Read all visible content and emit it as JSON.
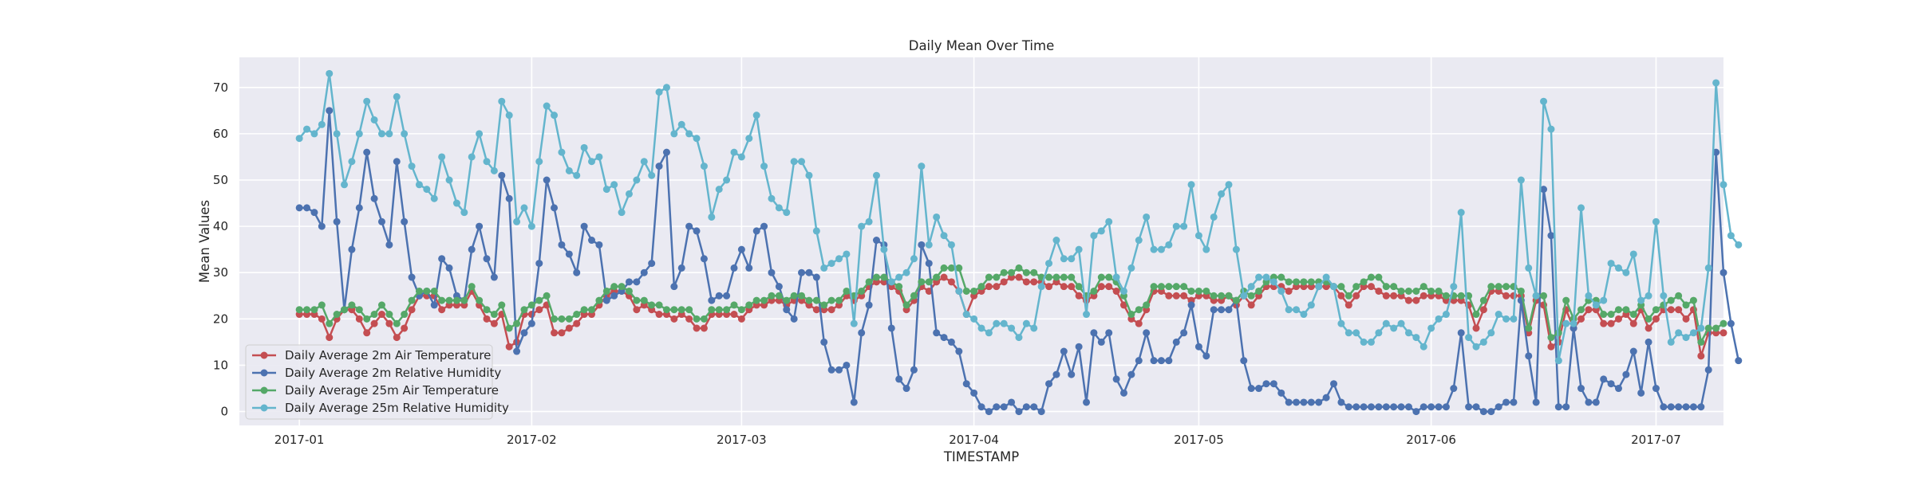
{
  "chart_data": {
    "type": "line",
    "title": "Daily Mean Over Time",
    "xlabel": "TIMESTAMP",
    "ylabel": "Mean Values",
    "xlim": [
      "2016-12-24",
      "2017-07-10"
    ],
    "ylim": [
      -3,
      76.5
    ],
    "yticks": [
      0,
      10,
      20,
      30,
      40,
      50,
      60,
      70
    ],
    "xticks": [
      "2017-01-01",
      "2017-02-01",
      "2017-03-01",
      "2017-04-01",
      "2017-05-01",
      "2017-06-01",
      "2017-07-01"
    ],
    "xtick_labels": [
      "2017-01",
      "2017-02",
      "2017-03",
      "2017-04",
      "2017-05",
      "2017-06",
      "2017-07"
    ],
    "grid": true,
    "legend_position": "lower-left",
    "start_date": "2017-01-01",
    "series": [
      {
        "name": "Daily Average 2m Air Temperature",
        "color": "#c44e52",
        "values": [
          21,
          21,
          21,
          20,
          16,
          20,
          22,
          22,
          20,
          17,
          19,
          21,
          19,
          16,
          18,
          22,
          25,
          25,
          25,
          22,
          23,
          23,
          23,
          26,
          23,
          20,
          19,
          21,
          14,
          15,
          21,
          21,
          22,
          23,
          17,
          17,
          18,
          19,
          21,
          21,
          23,
          25,
          26,
          26,
          25,
          22,
          23,
          22,
          21,
          21,
          20,
          21,
          20,
          18,
          18,
          21,
          21,
          21,
          21,
          20,
          22,
          23,
          23,
          24,
          24,
          23,
          24,
          24,
          23,
          22,
          22,
          22,
          23,
          25,
          24,
          25,
          27,
          28,
          28,
          27,
          26,
          22,
          24,
          27,
          26,
          28,
          29,
          28,
          26,
          21,
          25,
          26,
          27,
          27,
          28,
          29,
          29,
          28,
          28,
          28,
          27,
          28,
          27,
          27,
          25,
          24,
          25,
          27,
          27,
          26,
          23,
          20,
          19,
          22,
          26,
          26,
          25,
          25,
          25,
          24,
          25,
          25,
          24,
          24,
          25,
          23,
          25,
          23,
          25,
          27,
          27,
          27,
          26,
          27,
          27,
          27,
          27,
          27,
          27,
          25,
          23,
          25,
          27,
          27,
          26,
          25,
          25,
          25,
          24,
          24,
          25,
          25,
          25,
          24,
          24,
          24,
          23,
          18,
          22,
          26,
          26,
          25,
          25,
          25,
          17,
          24,
          23,
          14,
          15,
          22,
          18,
          20,
          22,
          22,
          19,
          19,
          20,
          21,
          19,
          22,
          18,
          20,
          22,
          22,
          22,
          20,
          22,
          12,
          17,
          17,
          17
        ]
      },
      {
        "name": "Daily Average 2m Relative Humidity",
        "color": "#4c72b0",
        "values": [
          44,
          44,
          43,
          40,
          65,
          41,
          22,
          35,
          44,
          56,
          46,
          41,
          36,
          54,
          41,
          29,
          25,
          26,
          23,
          33,
          31,
          25,
          24,
          35,
          40,
          33,
          29,
          51,
          46,
          13,
          17,
          19,
          32,
          50,
          44,
          36,
          34,
          30,
          40,
          37,
          36,
          24,
          25,
          26,
          28,
          28,
          30,
          32,
          53,
          56,
          27,
          31,
          40,
          39,
          33,
          24,
          25,
          25,
          31,
          35,
          31,
          39,
          40,
          30,
          27,
          22,
          20,
          30,
          30,
          29,
          15,
          9,
          9,
          10,
          2,
          17,
          23,
          37,
          36,
          18,
          7,
          5,
          9,
          36,
          32,
          17,
          16,
          15,
          13,
          6,
          4,
          1,
          0,
          1,
          1,
          2,
          0,
          1,
          1,
          0,
          6,
          8,
          13,
          8,
          14,
          2,
          17,
          15,
          17,
          7,
          4,
          8,
          11,
          17,
          11,
          11,
          11,
          15,
          17,
          23,
          14,
          12,
          22,
          22,
          22,
          24,
          11,
          5,
          5,
          6,
          6,
          4,
          2,
          2,
          2,
          2,
          2,
          3,
          6,
          2,
          1,
          1,
          1,
          1,
          1,
          1,
          1,
          1,
          1,
          0,
          1,
          1,
          1,
          1,
          5,
          17,
          1,
          1,
          0,
          0,
          1,
          2,
          2,
          24,
          12,
          2,
          48,
          38,
          1,
          1,
          18,
          5,
          2,
          2,
          7,
          6,
          5,
          8,
          13,
          4,
          15,
          5,
          1,
          1,
          1,
          1,
          1,
          1,
          9,
          56,
          30,
          19,
          11
        ]
      },
      {
        "name": "Daily Average 25m Air Temperature",
        "color": "#55a868",
        "values": [
          22,
          22,
          22,
          23,
          19,
          21,
          22,
          23,
          22,
          20,
          21,
          23,
          21,
          19,
          21,
          24,
          26,
          26,
          26,
          24,
          24,
          24,
          24,
          27,
          24,
          22,
          21,
          23,
          18,
          19,
          22,
          23,
          24,
          25,
          20,
          20,
          20,
          21,
          22,
          22,
          24,
          26,
          27,
          27,
          26,
          24,
          24,
          23,
          23,
          22,
          22,
          22,
          22,
          20,
          20,
          22,
          22,
          22,
          23,
          22,
          23,
          24,
          24,
          25,
          25,
          24,
          25,
          25,
          24,
          24,
          23,
          24,
          24,
          26,
          25,
          26,
          28,
          29,
          29,
          28,
          27,
          23,
          25,
          28,
          28,
          29,
          31,
          31,
          31,
          26,
          26,
          27,
          29,
          29,
          30,
          30,
          31,
          30,
          30,
          29,
          29,
          29,
          29,
          29,
          27,
          25,
          26,
          29,
          29,
          28,
          25,
          21,
          22,
          23,
          27,
          27,
          27,
          27,
          27,
          26,
          26,
          26,
          25,
          25,
          25,
          24,
          26,
          25,
          26,
          28,
          29,
          29,
          28,
          28,
          28,
          28,
          28,
          28,
          27,
          27,
          25,
          27,
          28,
          29,
          29,
          27,
          27,
          26,
          26,
          26,
          27,
          26,
          26,
          25,
          25,
          25,
          25,
          21,
          24,
          27,
          27,
          27,
          27,
          26,
          18,
          25,
          25,
          16,
          17,
          24,
          20,
          22,
          24,
          24,
          21,
          21,
          22,
          22,
          21,
          23,
          20,
          22,
          23,
          24,
          25,
          23,
          24,
          15,
          18,
          18,
          19
        ]
      },
      {
        "name": "Daily Average 25m Relative Humidity",
        "color": "#64b5cd",
        "values": [
          59,
          61,
          60,
          62,
          73,
          60,
          49,
          54,
          60,
          67,
          63,
          60,
          60,
          68,
          60,
          53,
          49,
          48,
          46,
          55,
          50,
          45,
          43,
          55,
          60,
          54,
          52,
          67,
          64,
          41,
          44,
          40,
          54,
          66,
          64,
          56,
          52,
          51,
          57,
          54,
          55,
          48,
          49,
          43,
          47,
          50,
          54,
          51,
          69,
          70,
          60,
          62,
          60,
          59,
          53,
          42,
          48,
          50,
          56,
          55,
          59,
          64,
          53,
          46,
          44,
          43,
          54,
          54,
          51,
          39,
          31,
          32,
          33,
          34,
          19,
          40,
          41,
          51,
          35,
          28,
          29,
          30,
          33,
          53,
          36,
          42,
          38,
          36,
          26,
          21,
          20,
          18,
          17,
          19,
          19,
          18,
          16,
          19,
          18,
          27,
          32,
          37,
          33,
          33,
          35,
          21,
          38,
          39,
          41,
          29,
          26,
          31,
          37,
          42,
          35,
          35,
          36,
          40,
          40,
          49,
          38,
          35,
          42,
          47,
          49,
          35,
          25,
          27,
          29,
          29,
          28,
          26,
          22,
          22,
          21,
          23,
          27,
          29,
          27,
          19,
          17,
          17,
          15,
          15,
          17,
          19,
          18,
          19,
          17,
          16,
          14,
          18,
          20,
          21,
          27,
          43,
          16,
          14,
          15,
          17,
          21,
          20,
          20,
          50,
          31,
          25,
          67,
          61,
          11,
          19,
          19,
          44,
          25,
          23,
          24,
          32,
          31,
          30,
          34,
          24,
          25,
          41,
          25,
          15,
          17,
          16,
          17,
          18,
          31,
          71,
          49,
          38,
          36
        ]
      }
    ]
  }
}
